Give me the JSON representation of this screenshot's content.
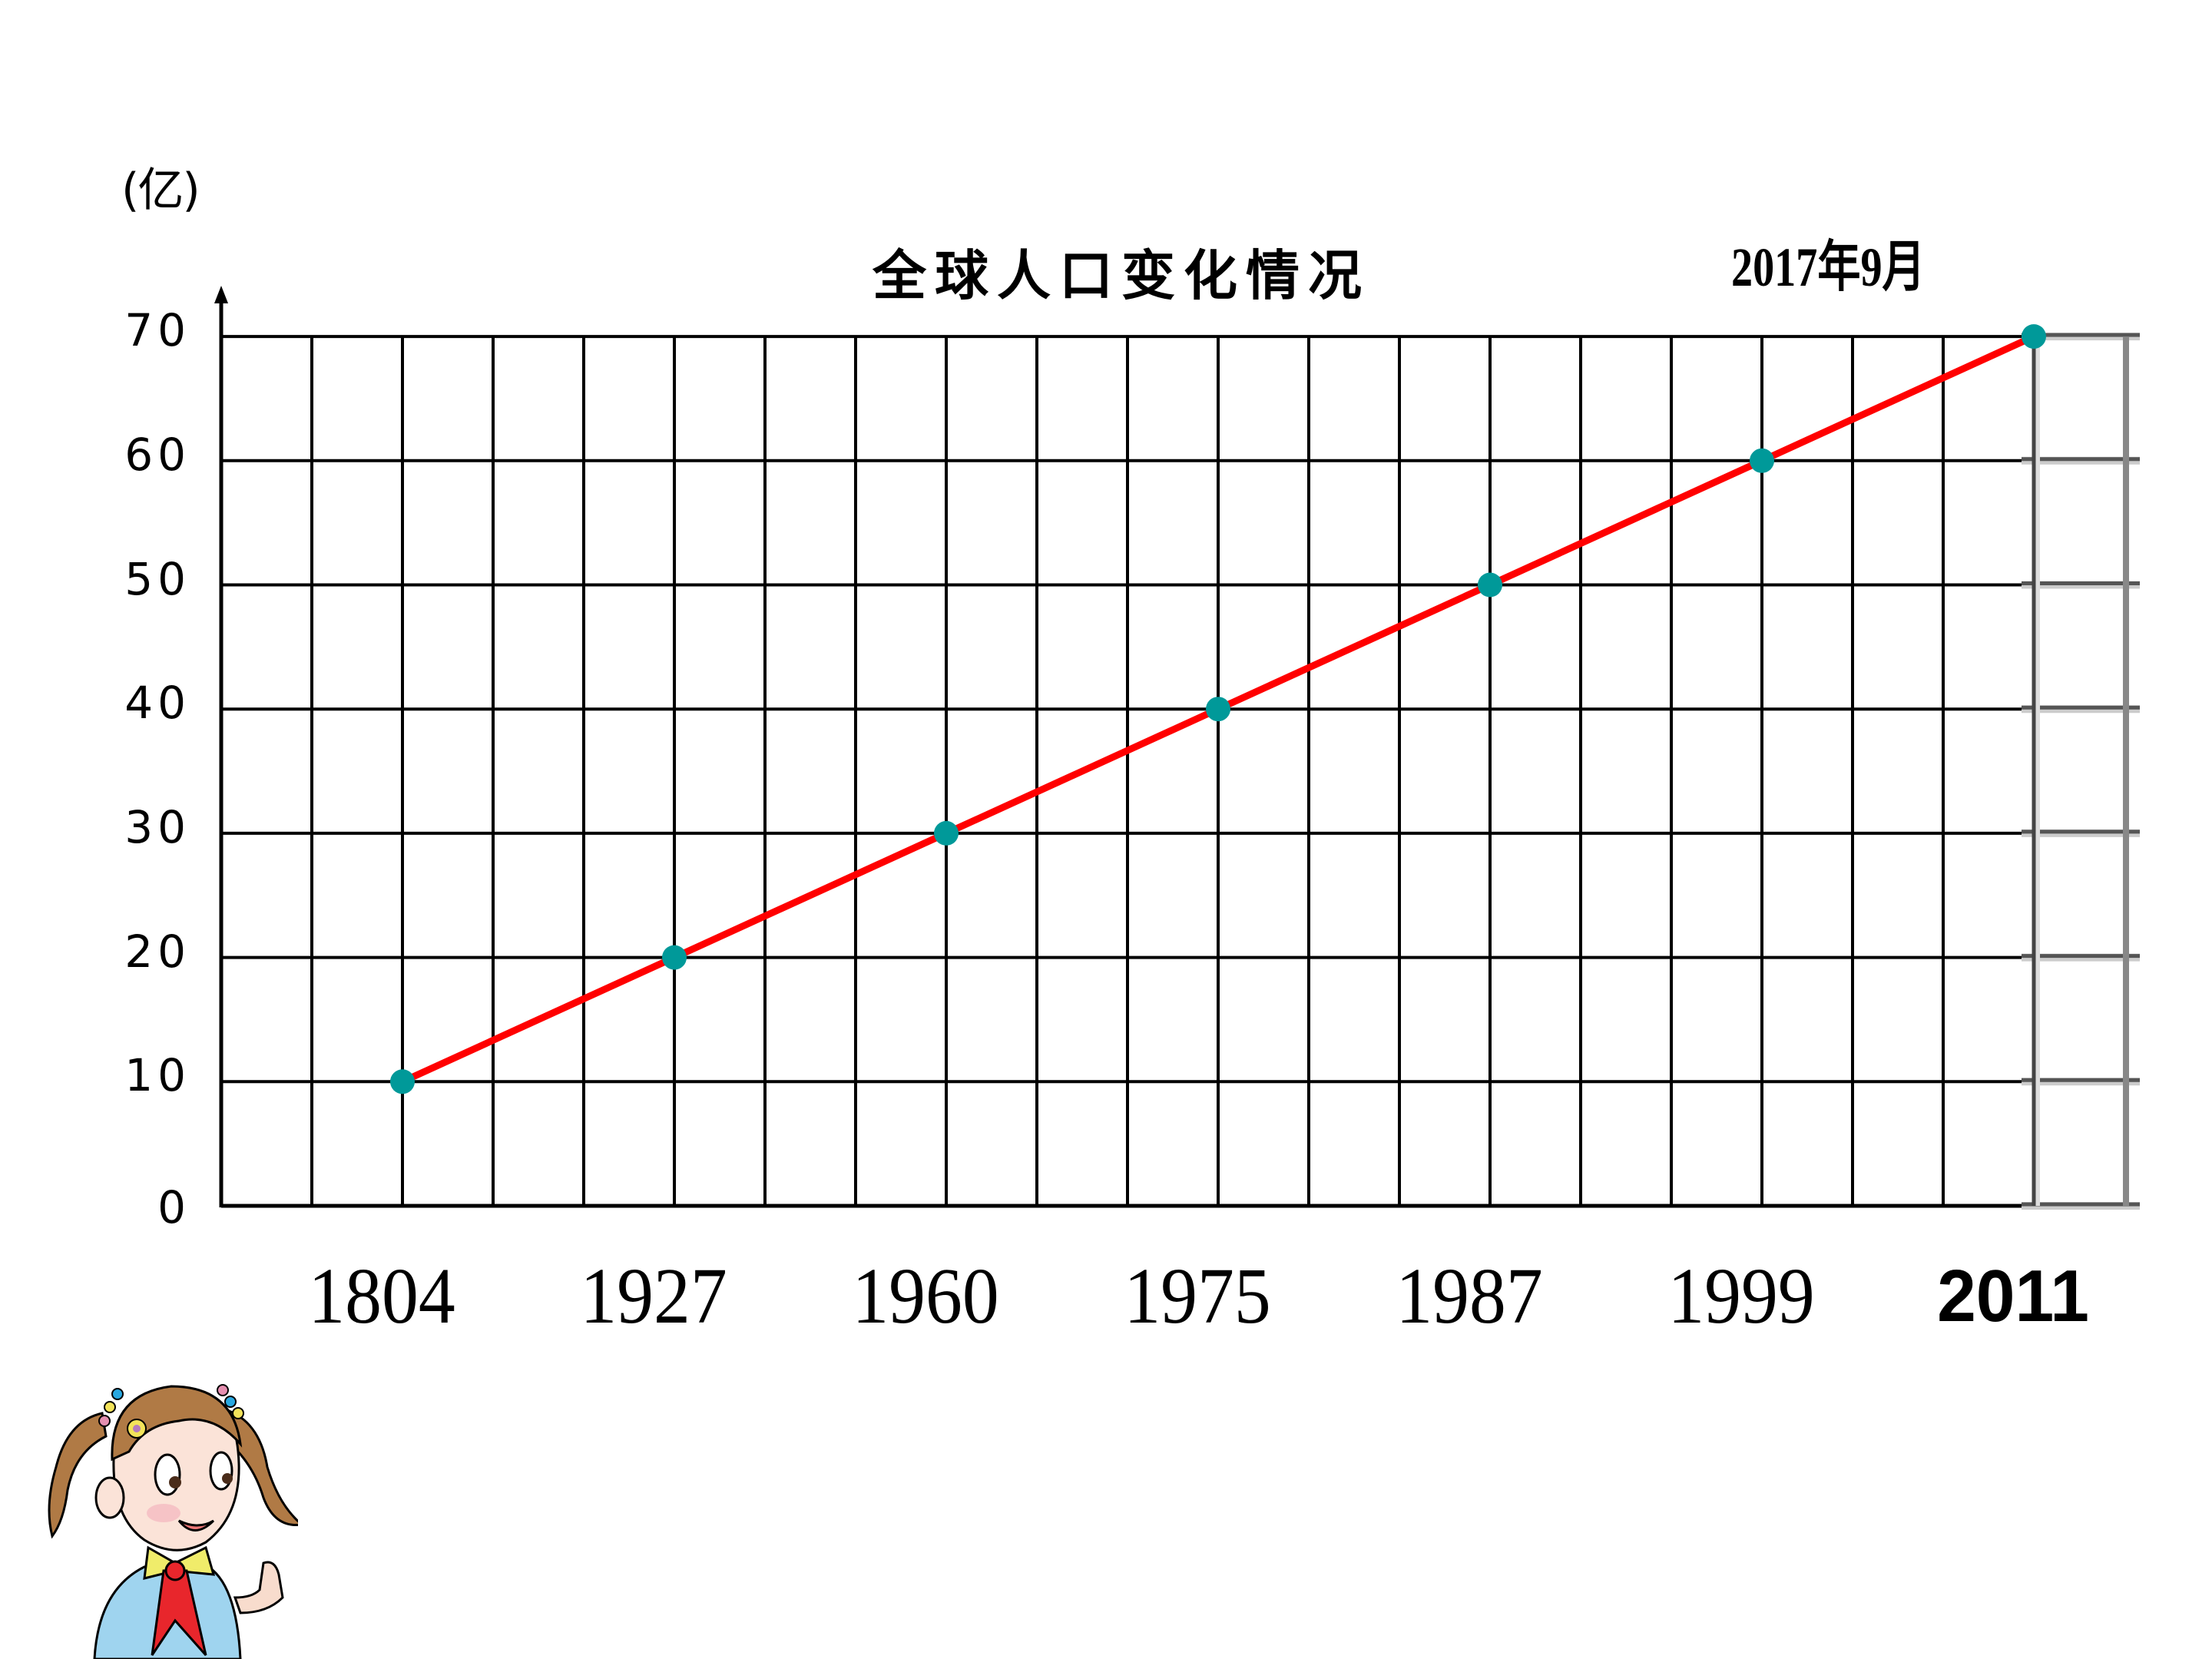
{
  "chart_data": {
    "type": "line",
    "title": "全球人口变化情况",
    "xlabel": "",
    "ylabel": "(亿)",
    "categories": [
      "1804",
      "1927",
      "1960",
      "1975",
      "1987",
      "1999",
      "2011"
    ],
    "series": [
      {
        "name": "全球人口",
        "values": [
          10,
          20,
          30,
          40,
          50,
          60,
          70
        ],
        "color": "#ff0000",
        "marker_color": "#009999"
      }
    ],
    "yticks": [
      "0",
      "10",
      "20",
      "30",
      "40",
      "50",
      "60",
      "70"
    ],
    "ylim": [
      0,
      70
    ],
    "grid": true,
    "annotations": [
      {
        "text": "2017年9月",
        "position": "above last point"
      }
    ],
    "legend": null
  },
  "labels": {
    "unit": "(亿)",
    "title": "全球人口变化情况",
    "annotation": "2017年9月",
    "yticks": [
      "0",
      "10",
      "20",
      "30",
      "40",
      "50",
      "60",
      "70"
    ],
    "xticks": [
      "1804",
      "1927",
      "1960",
      "1975",
      "1987",
      "1999",
      "2011"
    ]
  },
  "colors": {
    "line": "#ff0000",
    "marker": "#009999",
    "grid": "#000000",
    "grid_extension": "#555555"
  },
  "illustration": {
    "name": "cartoon girl with pigtails and red scarf"
  }
}
